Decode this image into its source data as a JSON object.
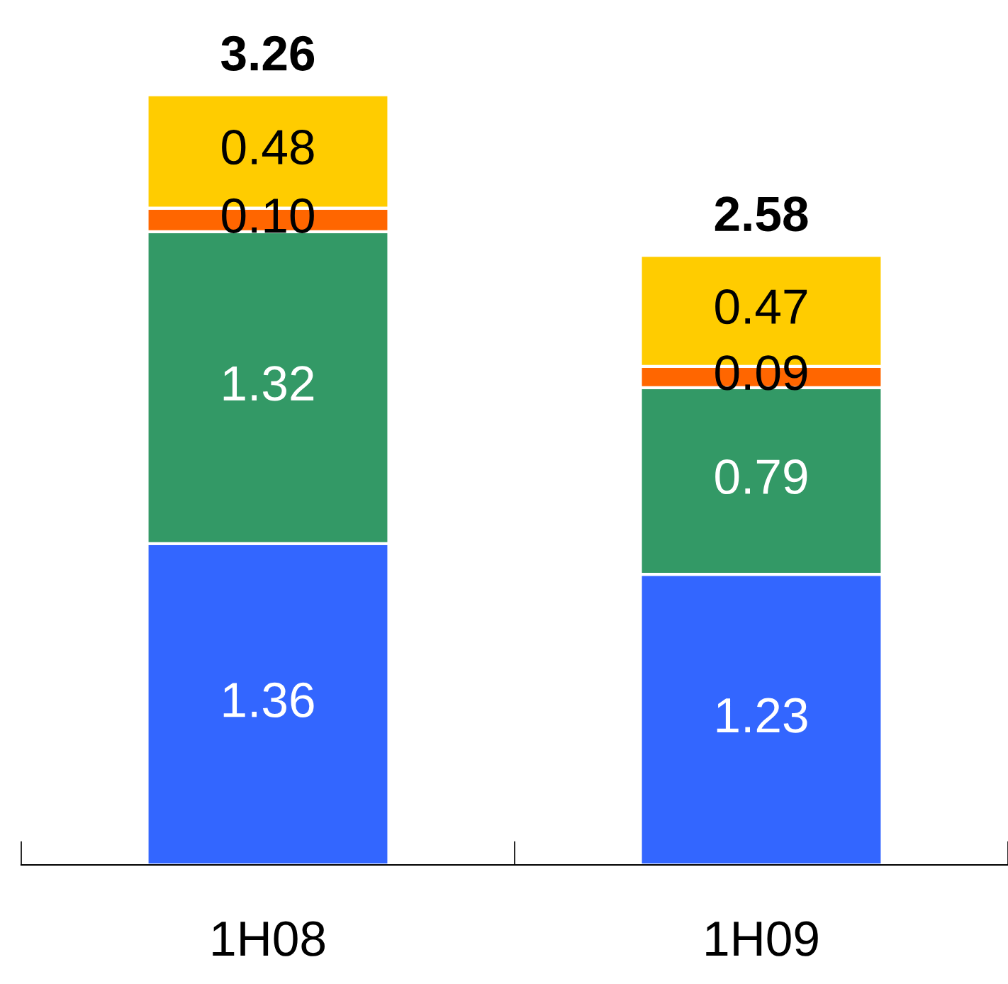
{
  "chart_data": {
    "type": "bar",
    "stacked": true,
    "categories": [
      "1H08",
      "1H09"
    ],
    "series": [
      {
        "color": "#3366ff",
        "values": [
          1.36,
          1.23
        ],
        "value_labels": [
          "1.36",
          "1.23"
        ]
      },
      {
        "color": "#339966",
        "values": [
          1.32,
          0.79
        ],
        "value_labels": [
          "1.32",
          "0.79"
        ]
      },
      {
        "color": "#ff6600",
        "values": [
          0.1,
          0.09
        ],
        "value_labels": [
          "0.10",
          "0.09"
        ]
      },
      {
        "color": "#ffcc00",
        "values": [
          0.48,
          0.47
        ],
        "value_labels": [
          "0.48",
          "0.47"
        ]
      }
    ],
    "totals": [
      "3.26",
      "2.58"
    ],
    "tick_labels": "x",
    "grid": false,
    "legend": false
  }
}
